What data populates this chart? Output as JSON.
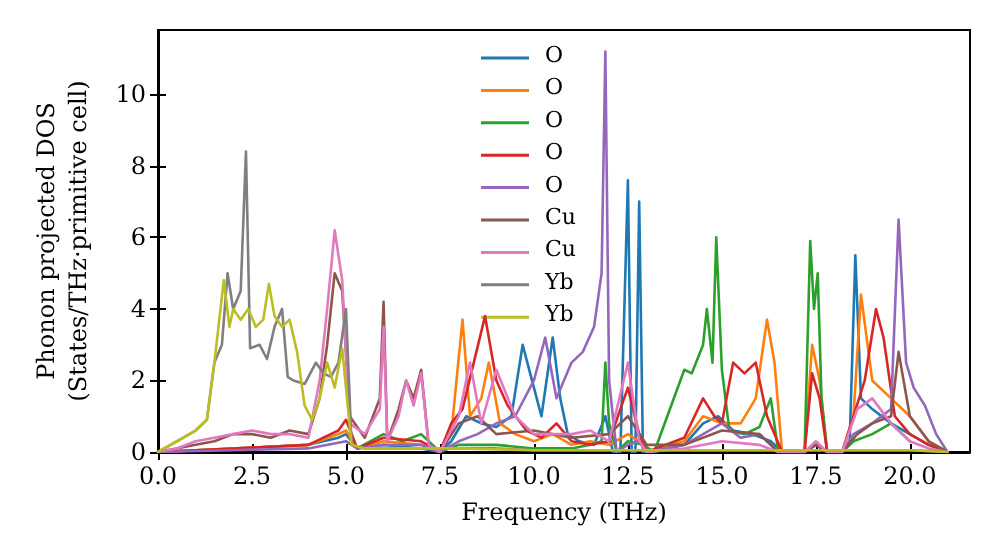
{
  "chart_data": {
    "type": "line",
    "xlabel": "Frequency (THz)",
    "ylabel": "Phonon projected DOS\n(States/THz·primitive cell)",
    "xlim": [
      0,
      21.6
    ],
    "ylim": [
      0,
      11.8
    ],
    "xticks": [
      {
        "value": 0,
        "label": "0.0"
      },
      {
        "value": 2.5,
        "label": "2.5"
      },
      {
        "value": 5,
        "label": "5.0"
      },
      {
        "value": 7.5,
        "label": "7.5"
      },
      {
        "value": 10,
        "label": "10.0"
      },
      {
        "value": 12.5,
        "label": "12.5"
      },
      {
        "value": 15,
        "label": "15.0"
      },
      {
        "value": 17.5,
        "label": "17.5"
      },
      {
        "value": 20,
        "label": "20.0"
      }
    ],
    "yticks": [
      0,
      2,
      4,
      6,
      8,
      10
    ],
    "grid": false,
    "legend": "top",
    "marker": "none",
    "series": [
      {
        "name": "O",
        "color": "#1f77b4",
        "x": [
          0,
          2,
          4,
          4.8,
          5.0,
          5.3,
          6,
          7,
          7.5,
          7.8,
          8.2,
          8.6,
          9.0,
          9.4,
          9.7,
          9.9,
          10.2,
          10.5,
          10.7,
          10.9,
          11.2,
          11.6,
          11.9,
          12.1,
          12.3,
          12.5,
          12.6,
          12.7,
          12.8,
          12.9,
          13.0,
          13.2,
          14,
          14.5,
          14.9,
          15.3,
          15.8,
          16.3,
          16.6,
          17.2,
          17.5,
          17.8,
          18.2,
          18.4,
          18.55,
          18.7,
          19.0,
          19.5,
          20.0,
          20.5,
          21
        ],
        "values": [
          0,
          0.1,
          0.2,
          0.4,
          0.5,
          0.1,
          0.2,
          0.1,
          0,
          0.3,
          1.0,
          0.8,
          0.7,
          1.0,
          3.0,
          2.2,
          1.0,
          3.2,
          1.5,
          0.5,
          0.3,
          0.2,
          1.0,
          0,
          0,
          7.6,
          0,
          0,
          7.0,
          0,
          0,
          0,
          0.2,
          0.8,
          1.0,
          0.6,
          0.5,
          0.3,
          0,
          0,
          0.2,
          0,
          0,
          0.3,
          5.5,
          1.5,
          1.2,
          0.8,
          0.5,
          0.2,
          0
        ]
      },
      {
        "name": "O",
        "color": "#ff7f0e",
        "x": [
          0,
          2,
          4,
          4.8,
          5.0,
          5.3,
          6,
          7,
          7.5,
          7.8,
          8.1,
          8.3,
          8.6,
          8.8,
          9.1,
          9.5,
          10,
          10.5,
          11,
          11.5,
          12,
          12.5,
          12.8,
          13.0,
          14,
          14.5,
          15.0,
          15.5,
          15.9,
          16.2,
          16.4,
          16.6,
          17.2,
          17.4,
          17.6,
          17.8,
          18.2,
          18.5,
          18.7,
          19.0,
          19.5,
          20.0,
          20.5,
          21
        ],
        "values": [
          0,
          0.1,
          0.2,
          0.5,
          0.6,
          0.1,
          0.3,
          0.2,
          0,
          0.5,
          3.7,
          1.0,
          1.5,
          2.5,
          0.8,
          0.5,
          0.3,
          0.5,
          0.2,
          0.3,
          0.2,
          0.5,
          0.3,
          0,
          0.3,
          1.0,
          0.8,
          0.8,
          1.5,
          3.7,
          2.5,
          0,
          0,
          3.0,
          2.0,
          0,
          0,
          1.0,
          4.4,
          2.0,
          1.5,
          1.0,
          0.3,
          0
        ]
      },
      {
        "name": "O",
        "color": "#2ca02c",
        "x": [
          5.0,
          5.3,
          6,
          6.5,
          7,
          7.5,
          8,
          9,
          10,
          11,
          11.5,
          11.8,
          11.9,
          12.0,
          12.2,
          12.5,
          12.9,
          13.2,
          14.0,
          14.2,
          14.5,
          14.6,
          14.75,
          14.85,
          15.0,
          15.2,
          15.6,
          16.0,
          16.3,
          16.5,
          17.2,
          17.35,
          17.45,
          17.55,
          17.65,
          17.8,
          18.2,
          18.5,
          19.0,
          19.5,
          20.0
        ],
        "values": [
          0.3,
          0.1,
          0.5,
          0.3,
          0.5,
          0,
          0.2,
          0.2,
          0.1,
          0.1,
          0.2,
          0.3,
          2.5,
          0.8,
          0,
          0.3,
          0.2,
          0,
          2.3,
          2.2,
          3.0,
          4.0,
          2.5,
          6.0,
          2.3,
          0.6,
          0.5,
          0.7,
          1.5,
          0,
          0,
          5.9,
          4.0,
          5.0,
          1.5,
          0,
          0,
          0.3,
          0.5,
          0.8,
          0.3
        ]
      },
      {
        "name": "O",
        "color": "#d62728",
        "x": [
          0,
          2,
          4,
          4.8,
          5.0,
          5.3,
          6,
          7,
          7.5,
          7.8,
          8.1,
          8.4,
          8.7,
          9.0,
          9.3,
          9.8,
          10.2,
          10.6,
          11,
          11.5,
          12,
          12.5,
          12.8,
          13.0,
          14,
          14.5,
          14.8,
          15.0,
          15.3,
          15.6,
          15.9,
          16.2,
          16.6,
          17.2,
          17.4,
          17.6,
          17.8,
          18.2,
          18.5,
          18.8,
          19.1,
          19.3,
          19.6,
          20.0,
          20.5,
          21
        ],
        "values": [
          0,
          0.1,
          0.2,
          0.6,
          0.9,
          0.1,
          0.4,
          0.3,
          0,
          0.8,
          1.2,
          2.5,
          3.8,
          2.0,
          1.3,
          0.6,
          0.4,
          0.8,
          0.3,
          0.2,
          0.3,
          1.8,
          0.5,
          0,
          0.4,
          1.5,
          1.0,
          0.8,
          2.5,
          2.2,
          2.5,
          1.0,
          0,
          0,
          2.2,
          1.5,
          0,
          0,
          1.0,
          2.0,
          4.0,
          3.2,
          1.0,
          0.5,
          0.2,
          0
        ]
      },
      {
        "name": "O",
        "color": "#9467bd",
        "x": [
          0,
          2,
          4,
          5.0,
          5.3,
          6,
          7,
          7.5,
          8,
          8.5,
          9,
          9.5,
          10,
          10.3,
          10.6,
          11,
          11.3,
          11.6,
          11.8,
          11.9,
          12.0,
          12.2,
          12.5,
          12.8,
          13.0,
          14,
          14.5,
          15,
          15.5,
          16,
          16.5,
          17.2,
          17.5,
          17.8,
          18.2,
          18.5,
          19.0,
          19.5,
          19.7,
          19.9,
          20.1,
          20.4,
          20.7,
          21
        ],
        "values": [
          0,
          0.05,
          0.1,
          0.3,
          0.1,
          0.2,
          0.2,
          0,
          0.3,
          0.5,
          0.8,
          1.0,
          2.0,
          3.2,
          1.5,
          2.5,
          2.8,
          3.5,
          5.0,
          11.2,
          2.0,
          0,
          0.2,
          0.3,
          0,
          0.2,
          0.5,
          0.8,
          0.4,
          0.5,
          0,
          0,
          0.2,
          0,
          0,
          0.5,
          0.8,
          1.2,
          6.5,
          2.5,
          1.8,
          1.3,
          0.5,
          0
        ]
      },
      {
        "name": "Cu",
        "color": "#8c564b",
        "x": [
          0,
          0.5,
          1.0,
          1.5,
          2.0,
          2.5,
          3.0,
          3.5,
          4.0,
          4.3,
          4.5,
          4.7,
          4.9,
          5.1,
          5.5,
          5.9,
          6.0,
          6.1,
          6.4,
          6.6,
          6.8,
          7.0,
          7.2,
          7.5,
          8,
          8.5,
          9,
          10,
          11,
          12,
          12.5,
          13,
          14,
          15,
          16,
          16.5,
          17.2,
          17.5,
          17.8,
          18.2,
          18.6,
          19.0,
          19.5,
          19.7,
          20,
          20.5,
          21
        ],
        "values": [
          0,
          0.1,
          0.2,
          0.3,
          0.5,
          0.5,
          0.4,
          0.6,
          0.5,
          1.5,
          3.0,
          5.0,
          4.5,
          1.0,
          0.4,
          1.5,
          4.2,
          0.3,
          1.2,
          2.0,
          1.5,
          2.3,
          0.2,
          0,
          0.8,
          1.0,
          0.5,
          0.6,
          0.4,
          0.5,
          1.0,
          0.2,
          0.2,
          0.6,
          0.5,
          0,
          0,
          0.2,
          0,
          0,
          0.5,
          0.8,
          1.0,
          2.8,
          1.0,
          0.3,
          0
        ]
      },
      {
        "name": "Cu",
        "color": "#e377c2",
        "x": [
          0,
          0.5,
          1.0,
          1.5,
          2.0,
          2.5,
          3.0,
          3.5,
          4.0,
          4.3,
          4.5,
          4.7,
          4.9,
          5.1,
          5.5,
          5.9,
          6.0,
          6.1,
          6.4,
          6.6,
          6.8,
          7.0,
          7.2,
          7.5,
          8,
          8.3,
          8.6,
          9,
          9.5,
          10,
          11,
          11.5,
          12,
          12.5,
          12.8,
          13,
          14,
          15,
          16,
          16.5,
          17.2,
          17.5,
          17.8,
          18.2,
          18.6,
          19.0,
          19.5,
          20,
          20.5,
          21
        ],
        "values": [
          0,
          0.1,
          0.3,
          0.4,
          0.5,
          0.6,
          0.5,
          0.5,
          0.4,
          2.0,
          4.0,
          6.2,
          4.8,
          0.8,
          0.5,
          1.2,
          3.5,
          0.3,
          1.0,
          2.0,
          1.3,
          2.2,
          0.2,
          0,
          1.0,
          2.5,
          0.8,
          2.3,
          1.0,
          0.5,
          0.5,
          0.6,
          0.3,
          2.5,
          0.3,
          0,
          0.1,
          0.3,
          0.2,
          0,
          0,
          0.3,
          0,
          0,
          1.2,
          1.5,
          0.8,
          0.3,
          0.1,
          0
        ]
      },
      {
        "name": "Yb",
        "color": "#7f7f7f",
        "x": [
          0,
          0.5,
          1.0,
          1.3,
          1.5,
          1.7,
          1.85,
          2.0,
          2.2,
          2.34,
          2.45,
          2.7,
          2.9,
          3.1,
          3.3,
          3.45,
          3.6,
          3.9,
          4.2,
          4.4,
          4.6,
          4.8,
          5.0,
          5.15,
          5.5,
          6,
          7,
          8,
          9,
          10,
          12,
          14,
          16,
          18,
          20,
          21
        ],
        "values": [
          0,
          0.3,
          0.6,
          0.9,
          2.5,
          3.0,
          5.0,
          4.0,
          4.5,
          8.4,
          2.9,
          3.0,
          2.6,
          3.5,
          4.0,
          2.1,
          2.0,
          1.9,
          2.5,
          2.2,
          2.1,
          2.5,
          4.0,
          0.2,
          0.1,
          0.1,
          0.1,
          0.1,
          0.1,
          0.05,
          0.05,
          0.05,
          0.05,
          0.05,
          0.05,
          0
        ]
      },
      {
        "name": "Yb",
        "color": "#bcbd22",
        "x": [
          0,
          0.5,
          1.0,
          1.3,
          1.5,
          1.75,
          1.9,
          2.0,
          2.2,
          2.4,
          2.6,
          2.8,
          2.95,
          3.1,
          3.3,
          3.5,
          3.7,
          3.9,
          4.1,
          4.3,
          4.5,
          4.7,
          4.9,
          5.0,
          5.15,
          5.5,
          6,
          7,
          8,
          10,
          12,
          14,
          16,
          18,
          20,
          21
        ],
        "values": [
          0,
          0.3,
          0.6,
          0.9,
          2.5,
          4.8,
          3.5,
          4.0,
          3.7,
          4.0,
          3.5,
          3.7,
          4.7,
          3.8,
          3.5,
          3.7,
          2.8,
          1.3,
          0.9,
          1.5,
          2.5,
          1.8,
          2.9,
          1.8,
          0.2,
          0.1,
          0.1,
          0.1,
          0.1,
          0.05,
          0.05,
          0.05,
          0.05,
          0.05,
          0.05,
          0
        ]
      }
    ]
  }
}
